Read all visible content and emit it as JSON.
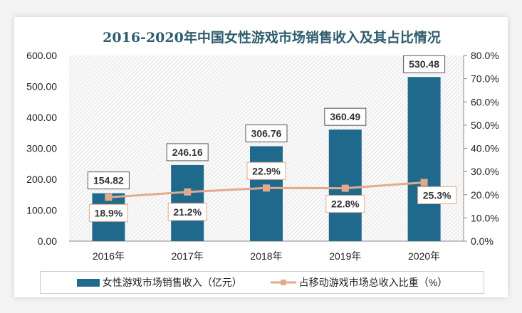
{
  "chart_data": {
    "type": "bar+line",
    "title": "2016-2020年中国女性游戏市场销售收入及其占比情况",
    "categories": [
      "2016年",
      "2017年",
      "2018年",
      "2019年",
      "2020年"
    ],
    "series": [
      {
        "name": "女性游戏市场销售收入（亿元）",
        "type": "bar",
        "axis": "left",
        "values": [
          154.82,
          246.16,
          306.76,
          360.49,
          530.48
        ],
        "labels": [
          "154.82",
          "246.16",
          "306.76",
          "360.49",
          "530.48"
        ],
        "color": "#1f6a8c"
      },
      {
        "name": "占移动游戏市场总收入比重（%）",
        "type": "line",
        "axis": "right",
        "values": [
          18.9,
          21.2,
          22.9,
          22.8,
          25.3
        ],
        "labels": [
          "18.9%",
          "21.2%",
          "22.9%",
          "22.8%",
          "25.3%"
        ],
        "color": "#e3a98c"
      }
    ],
    "left_axis": {
      "ylim": [
        0,
        600
      ],
      "ticks": [
        "0.00",
        "100.00",
        "200.00",
        "300.00",
        "400.00",
        "500.00",
        "600.00"
      ]
    },
    "right_axis": {
      "ylim": [
        0,
        80
      ],
      "ticks": [
        "0.0%",
        "10.0%",
        "20.0%",
        "30.0%",
        "40.0%",
        "50.0%",
        "60.0%",
        "70.0%",
        "80.0%"
      ]
    },
    "grid": false,
    "legend": "bottom"
  }
}
